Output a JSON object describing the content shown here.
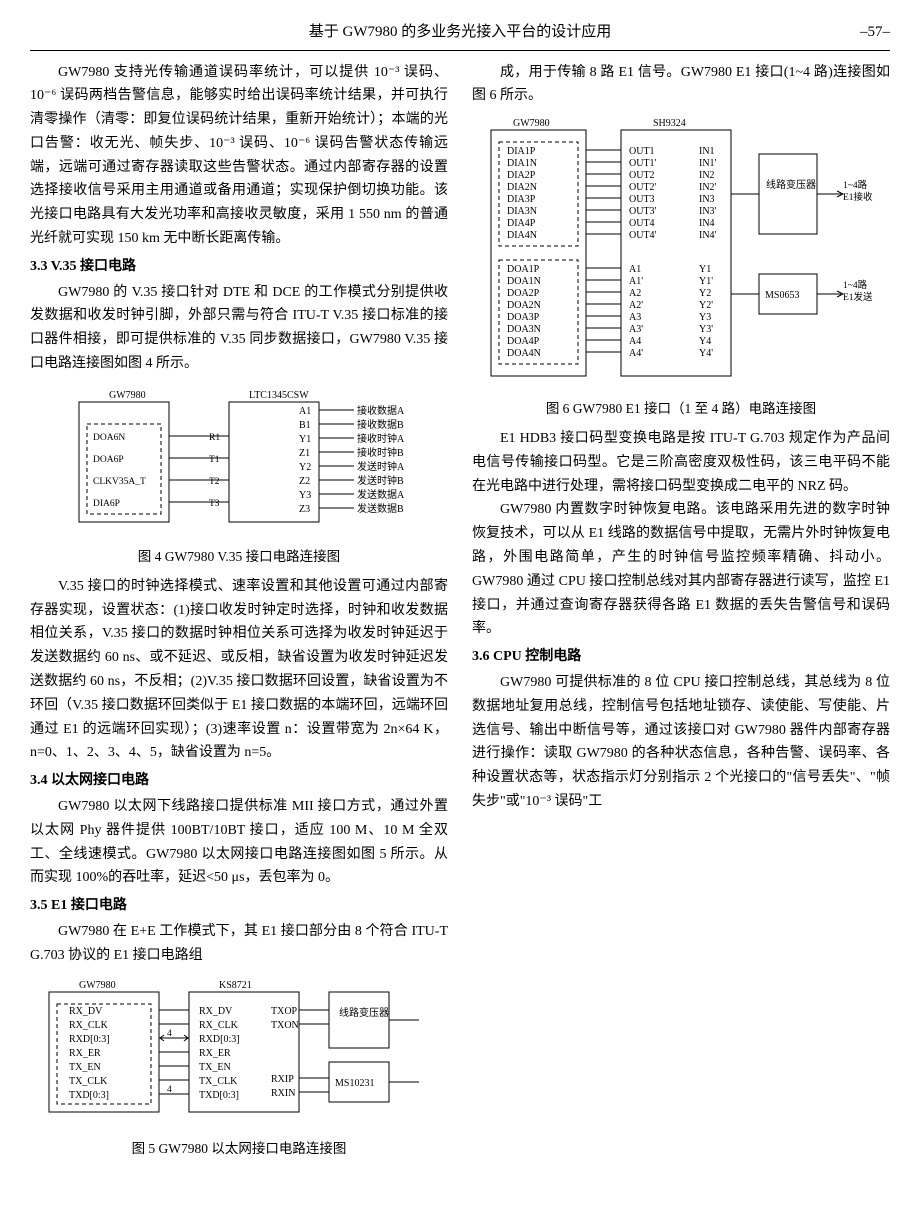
{
  "header": {
    "title": "基于 GW7980 的多业务光接入平台的设计应用",
    "page": "–57–"
  },
  "p1": "GW7980 支持光传输通道误码率统计，可以提供 10⁻³ 误码、10⁻⁶ 误码两档告警信息，能够实时给出误码率统计结果，并可执行清零操作（清零：即复位误码统计结果，重新开始统计）；本端的光口告警：收无光、帧失步、10⁻³ 误码、10⁻⁶ 误码告警状态传输远端，远端可通过寄存器读取这些告警状态。通过内部寄存器的设置选择接收信号采用主用通道或备用通道；实现保护倒切换功能。该光接口电路具有大发光功率和高接收灵敏度，采用 1 550 nm 的普通光纤就可实现 150 km 无中断长距离传输。",
  "sec33": "3.3  V.35 接口电路",
  "p2": "GW7980 的 V.35 接口针对 DTE 和 DCE 的工作模式分别提供收发数据和收发时钟引脚，外部只需与符合 ITU-T V.35 接口标准的接口器件相接，即可提供标准的 V.35 同步数据接口，GW7980 V.35 接口电路连接图如图 4 所示。",
  "fig4": {
    "caption": "图 4  GW7980 V.35 接口电路连接图",
    "left_chip": "GW7980",
    "right_chip": "LTC1345CSW",
    "left_pins": [
      "DOA6N",
      "DOA6P",
      "CLKV35A_T",
      "DIA6P"
    ],
    "mid_pins": [
      "R1",
      "T1",
      "T2",
      "T3"
    ],
    "right_pins_left": [
      "A1",
      "B1",
      "Y1",
      "Z1",
      "Y2",
      "Z2",
      "Y3",
      "Z3"
    ],
    "right_labels": [
      "接收数据A",
      "接收数据B",
      "接收时钟A",
      "接收时钟B",
      "发送时钟A",
      "发送时钟B",
      "发送数据A",
      "发送数据B"
    ]
  },
  "p3": "V.35 接口的时钟选择模式、速率设置和其他设置可通过内部寄存器实现，设置状态：(1)接口收发时钟定时选择，时钟和收发数据相位关系，V.35 接口的数据时钟相位关系可选择为收发时钟延迟于发送数据约 60 ns、或不延迟、或反相，缺省设置为收发时钟延迟发送数据约 60 ns，不反相；(2)V.35 接口数据环回设置，缺省设置为不环回（V.35 接口数据环回类似于 E1 接口数据的本端环回，远端环回通过 E1 的远端环回实现）；(3)速率设置 n：设置带宽为 2n×64 K，n=0、1、2、3、4、5，缺省设置为 n=5。",
  "sec34": "3.4  以太网接口电路",
  "p4": "GW7980 以太网下线路接口提供标准 MII 接口方式，通过外置以太网 Phy 器件提供 100BT/10BT 接口，适应 100 M、10 M 全双工、全线速模式。GW7980 以太网接口电路连接图如图 5 所示。从而实现 100%的吞吐率，延迟<50 μs，丢包率为 0。",
  "sec35": "3.5  E1 接口电路",
  "p5": "GW7980 在 E+E 工作模式下，其 E1 接口部分由 8 个符合 ITU-T G.703 协议的 E1 接口电路组",
  "fig5": {
    "caption": "图 5  GW7980 以太网接口电路连接图",
    "chips": [
      "GW7980",
      "KS8721",
      "线路变压器",
      "MS10231"
    ],
    "left_pins": [
      "RX_DV",
      "RX_CLK",
      "RXD[0:3]",
      "RX_ER",
      "TX_EN",
      "TX_CLK",
      "TXD[0:3]"
    ],
    "mid_pins": [
      "RX_DV",
      "RX_CLK",
      "RXD[0:3]",
      "RX_ER",
      "TX_EN",
      "TX_CLK",
      "TXD[0:3]"
    ],
    "right_pins": [
      "TXOP",
      "TXON",
      "RXIP",
      "RXIN"
    ],
    "bus": "4"
  },
  "p6": "成，用于传输 8 路 E1 信号。GW7980 E1 接口(1~4 路)连接图如图 6 所示。",
  "fig6": {
    "caption": "图 6  GW7980 E1 接口（1 至 4 路）电路连接图",
    "chips": [
      "GW7980",
      "SH9324",
      "线路变压器",
      "MS0653"
    ],
    "gw_up": [
      "DIA1P",
      "DIA1N",
      "DIA2P",
      "DIA2N",
      "DIA3P",
      "DIA3N",
      "DIA4P",
      "DIA4N"
    ],
    "gw_dn": [
      "DOA1P",
      "DOA1N",
      "DOA2P",
      "DOA2N",
      "DOA3P",
      "DOA3N",
      "DOA4P",
      "DOA4N"
    ],
    "sh_up_l": [
      "OUT1",
      "OUT1'",
      "OUT2",
      "OUT2'",
      "OUT3",
      "OUT3'",
      "OUT4",
      "OUT4'"
    ],
    "sh_up_r": [
      "IN1",
      "IN1'",
      "IN2",
      "IN2'",
      "IN3",
      "IN3'",
      "IN4",
      "IN4'"
    ],
    "sh_dn_l": [
      "A1",
      "A1'",
      "A2",
      "A2'",
      "A3",
      "A3'",
      "A4",
      "A4'"
    ],
    "sh_dn_r": [
      "Y1",
      "Y1'",
      "Y2",
      "Y2'",
      "Y3",
      "Y3'",
      "Y4",
      "Y4'"
    ],
    "ext_top": "1~4路\nE1接收",
    "ext_bot": "1~4路\nE1发送"
  },
  "p7": "E1 HDB3 接口码型变换电路是按 ITU-T G.703 规定作为产品间电信号传输接口码型。它是三阶高密度双极性码，该三电平码不能在光电路中进行处理，需将接口码型变换成二电平的 NRZ 码。",
  "p8": "GW7980 内置数字时钟恢复电路。该电路采用先进的数字时钟恢复技术，可以从 E1 线路的数据信号中提取，无需片外时钟恢复电路，外围电路简单，产生的时钟信号监控频率精确、抖动小。GW7980 通过 CPU 接口控制总线对其内部寄存器进行读写，监控 E1 接口，并通过查询寄存器获得各路 E1 数据的丢失告警信号和误码率。",
  "sec36": "3.6  CPU 控制电路",
  "p9": "GW7980 可提供标准的 8 位 CPU 接口控制总线，其总线为 8 位数据地址复用总线，控制信号包括地址锁存、读使能、写使能、片选信号、输出中断信号等，通过该接口对 GW7980 器件内部寄存器进行操作：读取 GW7980 的各种状态信息，各种告警、误码率、各种设置状态等，状态指示灯分别指示 2 个光接口的\"信号丢失\"、\"帧失步\"或\"10⁻³ 误码\"工"
}
